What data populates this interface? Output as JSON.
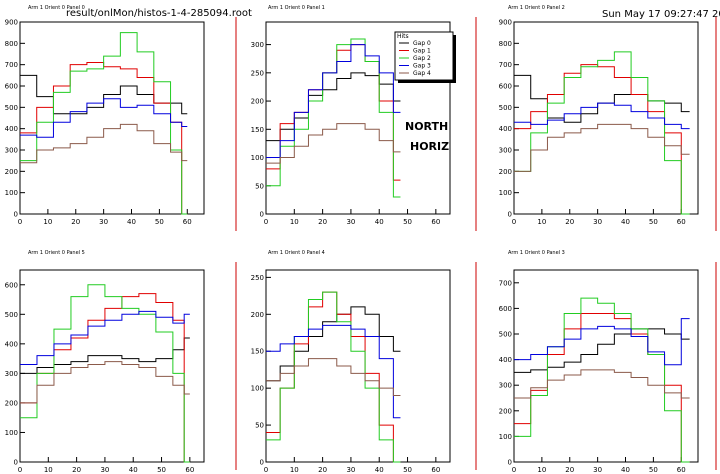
{
  "header": {
    "file": "result/onlMon/histos-1-4-285094.root",
    "datetime": "Sun May 17 09:27:47 2009"
  },
  "labels": {
    "north": "NORTH",
    "horiz": "HORIZ"
  },
  "colors": {
    "Gap 0": "#000000",
    "Gap 1": "#e00000",
    "Gap 2": "#22cc22",
    "Gap 3": "#0000dd",
    "Gap 4": "#8b5a4a",
    "frame_right": "#cc0000"
  },
  "chart_data": [
    {
      "type": "line",
      "title": "Arm 1 Orient 0 Panel 0",
      "xlim": [
        0,
        66
      ],
      "ylim": [
        0,
        900
      ],
      "xticks": [
        0,
        10,
        20,
        30,
        40,
        50,
        60
      ],
      "yticks": [
        0,
        100,
        200,
        300,
        400,
        500,
        600,
        700,
        800,
        900
      ],
      "series": [
        {
          "name": "Gap 0",
          "x": [
            0,
            6,
            12,
            18,
            24,
            30,
            36,
            42,
            48,
            54,
            58
          ],
          "y": [
            650,
            550,
            470,
            470,
            500,
            560,
            600,
            560,
            520,
            520,
            470
          ]
        },
        {
          "name": "Gap 1",
          "x": [
            0,
            6,
            12,
            18,
            24,
            30,
            36,
            42,
            48,
            54,
            58
          ],
          "y": [
            380,
            500,
            600,
            700,
            710,
            690,
            680,
            640,
            520,
            430,
            0
          ]
        },
        {
          "name": "Gap 2",
          "x": [
            0,
            6,
            12,
            18,
            24,
            30,
            36,
            42,
            48,
            54,
            58
          ],
          "y": [
            250,
            430,
            570,
            670,
            680,
            740,
            850,
            760,
            620,
            300,
            0
          ]
        },
        {
          "name": "Gap 3",
          "x": [
            0,
            6,
            12,
            18,
            24,
            30,
            36,
            42,
            48,
            54,
            58
          ],
          "y": [
            370,
            360,
            430,
            480,
            520,
            540,
            500,
            510,
            470,
            430,
            410
          ]
        },
        {
          "name": "Gap 4",
          "x": [
            0,
            6,
            12,
            18,
            24,
            30,
            36,
            42,
            48,
            54,
            58
          ],
          "y": [
            240,
            300,
            310,
            330,
            360,
            400,
            420,
            390,
            330,
            290,
            250
          ]
        }
      ]
    },
    {
      "type": "line",
      "title": "Arm 1 Orient 0 Panel 1",
      "xlim": [
        0,
        65
      ],
      "ylim": [
        0,
        340
      ],
      "xticks": [
        0,
        10,
        20,
        30,
        40,
        50,
        60
      ],
      "yticks": [
        0,
        50,
        100,
        150,
        200,
        250,
        300
      ],
      "legend": {
        "title": "Hits",
        "entries": [
          "Gap 0",
          "Gap 1",
          "Gap 2",
          "Gap 3",
          "Gap 4"
        ],
        "position": "top-right"
      },
      "series": [
        {
          "name": "Gap 0",
          "x": [
            0,
            5,
            10,
            15,
            20,
            25,
            30,
            35,
            40,
            45
          ],
          "y": [
            130,
            150,
            170,
            210,
            220,
            240,
            250,
            245,
            230,
            200
          ]
        },
        {
          "name": "Gap 1",
          "x": [
            0,
            5,
            10,
            15,
            20,
            25,
            30,
            35,
            40,
            45
          ],
          "y": [
            80,
            160,
            180,
            220,
            250,
            290,
            300,
            270,
            200,
            60
          ]
        },
        {
          "name": "Gap 2",
          "x": [
            0,
            5,
            10,
            15,
            20,
            25,
            30,
            35,
            40,
            45
          ],
          "y": [
            50,
            120,
            150,
            200,
            250,
            300,
            310,
            270,
            180,
            30
          ]
        },
        {
          "name": "Gap 3",
          "x": [
            0,
            5,
            10,
            15,
            20,
            25,
            30,
            35,
            40,
            45
          ],
          "y": [
            100,
            130,
            180,
            220,
            250,
            270,
            300,
            280,
            250,
            180
          ]
        },
        {
          "name": "Gap 4",
          "x": [
            0,
            5,
            10,
            15,
            20,
            25,
            30,
            35,
            40,
            45
          ],
          "y": [
            90,
            100,
            120,
            140,
            150,
            160,
            160,
            150,
            130,
            110
          ]
        }
      ]
    },
    {
      "type": "line",
      "title": "Arm 1 Orient 0 Panel 2",
      "xlim": [
        0,
        66
      ],
      "ylim": [
        0,
        900
      ],
      "xticks": [
        0,
        10,
        20,
        30,
        40,
        50,
        60
      ],
      "yticks": [
        0,
        100,
        200,
        300,
        400,
        500,
        600,
        700,
        800,
        900
      ],
      "series": [
        {
          "name": "Gap 0",
          "x": [
            0,
            6,
            12,
            18,
            24,
            30,
            36,
            42,
            48,
            54,
            60
          ],
          "y": [
            650,
            540,
            450,
            430,
            470,
            520,
            560,
            560,
            530,
            520,
            480
          ]
        },
        {
          "name": "Gap 1",
          "x": [
            0,
            6,
            12,
            18,
            24,
            30,
            36,
            42,
            48,
            54,
            60
          ],
          "y": [
            400,
            480,
            560,
            660,
            700,
            690,
            640,
            560,
            480,
            380,
            0
          ]
        },
        {
          "name": "Gap 2",
          "x": [
            0,
            6,
            12,
            18,
            24,
            30,
            36,
            42,
            48,
            54,
            60
          ],
          "y": [
            200,
            380,
            520,
            640,
            690,
            720,
            760,
            640,
            530,
            250,
            0
          ]
        },
        {
          "name": "Gap 3",
          "x": [
            0,
            6,
            12,
            18,
            24,
            30,
            36,
            42,
            48,
            54,
            60
          ],
          "y": [
            430,
            420,
            440,
            470,
            500,
            520,
            510,
            480,
            450,
            420,
            400
          ]
        },
        {
          "name": "Gap 4",
          "x": [
            0,
            6,
            12,
            18,
            24,
            30,
            36,
            42,
            48,
            54,
            60
          ],
          "y": [
            200,
            300,
            360,
            380,
            400,
            420,
            420,
            400,
            360,
            320,
            280
          ]
        }
      ]
    },
    {
      "type": "line",
      "title": "Arm 1 Orient 0 Panel 5",
      "xlim": [
        0,
        65
      ],
      "ylim": [
        0,
        650
      ],
      "xticks": [
        0,
        10,
        20,
        30,
        40,
        50,
        60
      ],
      "yticks": [
        0,
        100,
        200,
        300,
        400,
        500,
        600
      ],
      "series": [
        {
          "name": "Gap 0",
          "x": [
            0,
            6,
            12,
            18,
            24,
            30,
            36,
            42,
            48,
            54,
            58
          ],
          "y": [
            300,
            320,
            330,
            340,
            360,
            360,
            350,
            340,
            350,
            380,
            420
          ]
        },
        {
          "name": "Gap 1",
          "x": [
            0,
            6,
            12,
            18,
            24,
            30,
            36,
            42,
            48,
            54,
            58
          ],
          "y": [
            200,
            300,
            380,
            420,
            480,
            520,
            560,
            570,
            540,
            480,
            0
          ]
        },
        {
          "name": "Gap 2",
          "x": [
            0,
            6,
            12,
            18,
            24,
            30,
            36,
            42,
            48,
            54,
            58
          ],
          "y": [
            150,
            300,
            450,
            560,
            600,
            560,
            520,
            500,
            440,
            300,
            0
          ]
        },
        {
          "name": "Gap 3",
          "x": [
            0,
            6,
            12,
            18,
            24,
            30,
            36,
            42,
            48,
            54,
            58
          ],
          "y": [
            330,
            360,
            400,
            430,
            460,
            480,
            500,
            510,
            490,
            470,
            500
          ]
        },
        {
          "name": "Gap 4",
          "x": [
            0,
            6,
            12,
            18,
            24,
            30,
            36,
            42,
            48,
            54,
            58
          ],
          "y": [
            200,
            260,
            300,
            320,
            330,
            340,
            330,
            320,
            290,
            260,
            230
          ]
        }
      ]
    },
    {
      "type": "line",
      "title": "Arm 1 Orient 0 Panel 4",
      "xlim": [
        0,
        65
      ],
      "ylim": [
        0,
        260
      ],
      "xticks": [
        0,
        10,
        20,
        30,
        40,
        50,
        60
      ],
      "yticks": [
        0,
        50,
        100,
        150,
        200,
        250
      ],
      "series": [
        {
          "name": "Gap 0",
          "x": [
            0,
            5,
            10,
            15,
            20,
            25,
            30,
            35,
            40,
            45
          ],
          "y": [
            110,
            130,
            150,
            170,
            190,
            200,
            210,
            200,
            170,
            150
          ]
        },
        {
          "name": "Gap 1",
          "x": [
            0,
            5,
            10,
            15,
            20,
            25,
            30,
            35,
            40,
            45
          ],
          "y": [
            40,
            100,
            160,
            210,
            230,
            200,
            170,
            120,
            50,
            0
          ]
        },
        {
          "name": "Gap 2",
          "x": [
            0,
            5,
            10,
            15,
            20,
            25,
            30,
            35,
            40,
            45
          ],
          "y": [
            30,
            100,
            170,
            220,
            230,
            190,
            150,
            100,
            30,
            0
          ]
        },
        {
          "name": "Gap 3",
          "x": [
            0,
            5,
            10,
            15,
            20,
            25,
            30,
            35,
            40,
            45
          ],
          "y": [
            150,
            160,
            170,
            180,
            185,
            185,
            180,
            170,
            140,
            60
          ]
        },
        {
          "name": "Gap 4",
          "x": [
            0,
            5,
            10,
            15,
            20,
            25,
            30,
            35,
            40,
            45
          ],
          "y": [
            110,
            120,
            130,
            140,
            140,
            130,
            120,
            110,
            100,
            90
          ]
        }
      ]
    },
    {
      "type": "line",
      "title": "Arm 1 Orient 0 Panel 3",
      "xlim": [
        0,
        66
      ],
      "ylim": [
        0,
        750
      ],
      "xticks": [
        0,
        10,
        20,
        30,
        40,
        50,
        60
      ],
      "yticks": [
        0,
        100,
        200,
        300,
        400,
        500,
        600,
        700
      ],
      "series": [
        {
          "name": "Gap 0",
          "x": [
            0,
            6,
            12,
            18,
            24,
            30,
            36,
            42,
            48,
            54,
            60
          ],
          "y": [
            350,
            360,
            370,
            390,
            420,
            460,
            500,
            520,
            520,
            500,
            480
          ]
        },
        {
          "name": "Gap 1",
          "x": [
            0,
            6,
            12,
            18,
            24,
            30,
            36,
            42,
            48,
            54,
            60
          ],
          "y": [
            150,
            280,
            420,
            520,
            580,
            580,
            560,
            500,
            420,
            300,
            0
          ]
        },
        {
          "name": "Gap 2",
          "x": [
            0,
            6,
            12,
            18,
            24,
            30,
            36,
            42,
            48,
            54,
            60
          ],
          "y": [
            100,
            260,
            450,
            580,
            640,
            620,
            580,
            520,
            420,
            200,
            0
          ]
        },
        {
          "name": "Gap 3",
          "x": [
            0,
            6,
            12,
            18,
            24,
            30,
            36,
            42,
            48,
            54,
            60
          ],
          "y": [
            400,
            420,
            450,
            480,
            520,
            530,
            520,
            490,
            430,
            380,
            560
          ]
        },
        {
          "name": "Gap 4",
          "x": [
            0,
            6,
            12,
            18,
            24,
            30,
            36,
            42,
            48,
            54,
            60
          ],
          "y": [
            250,
            290,
            320,
            340,
            360,
            360,
            350,
            330,
            300,
            270,
            250
          ]
        }
      ]
    }
  ]
}
